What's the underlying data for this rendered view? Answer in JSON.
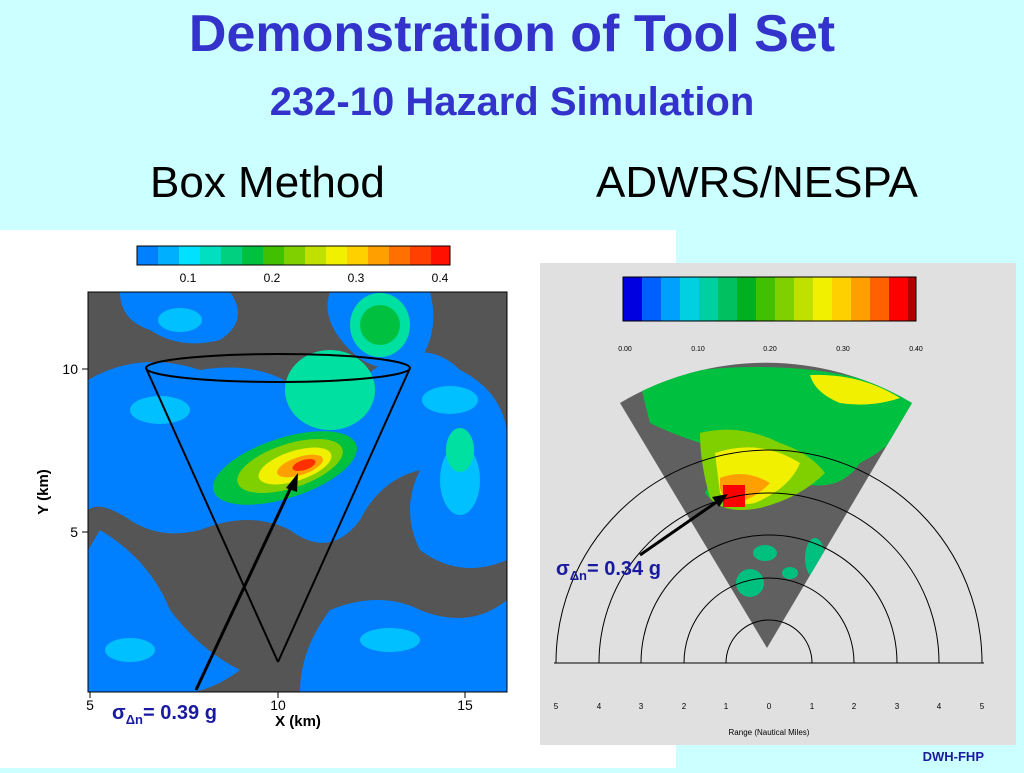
{
  "title": "Demonstration of Tool Set",
  "subtitle": "232-10 Hazard Simulation",
  "sections": {
    "left": "Box Method",
    "right": "ADWRS/NESPA"
  },
  "left_plot": {
    "colorbar_ticks": [
      "0.1",
      "0.2",
      "0.3",
      "0.4"
    ],
    "y_ticks": [
      "10",
      "5"
    ],
    "x_ticks": [
      "5",
      "10",
      "15"
    ],
    "y_label": "Y (km)",
    "x_label": "X (km)",
    "annotation": {
      "sigma": "σ",
      "sub": "Δn",
      "value": "= 0.39 g"
    }
  },
  "right_plot": {
    "colorbar_ticks": [
      "0.00",
      "0.10",
      "0.20",
      "0.30",
      "0.40"
    ],
    "x_ticks": [
      "5",
      "4",
      "3",
      "2",
      "1",
      "0",
      "1",
      "2",
      "3",
      "4",
      "5"
    ],
    "x_label": "Range (Nautical Miles)",
    "annotation": {
      "sigma": "σ",
      "sub": "Δn",
      "value": "= 0.34 g"
    }
  },
  "footer": "DWH-FHP",
  "colors": {
    "title": "#3333cc",
    "background": "#ccffff",
    "plot_gray": "#555555",
    "annotation": "#1a1aa0"
  }
}
